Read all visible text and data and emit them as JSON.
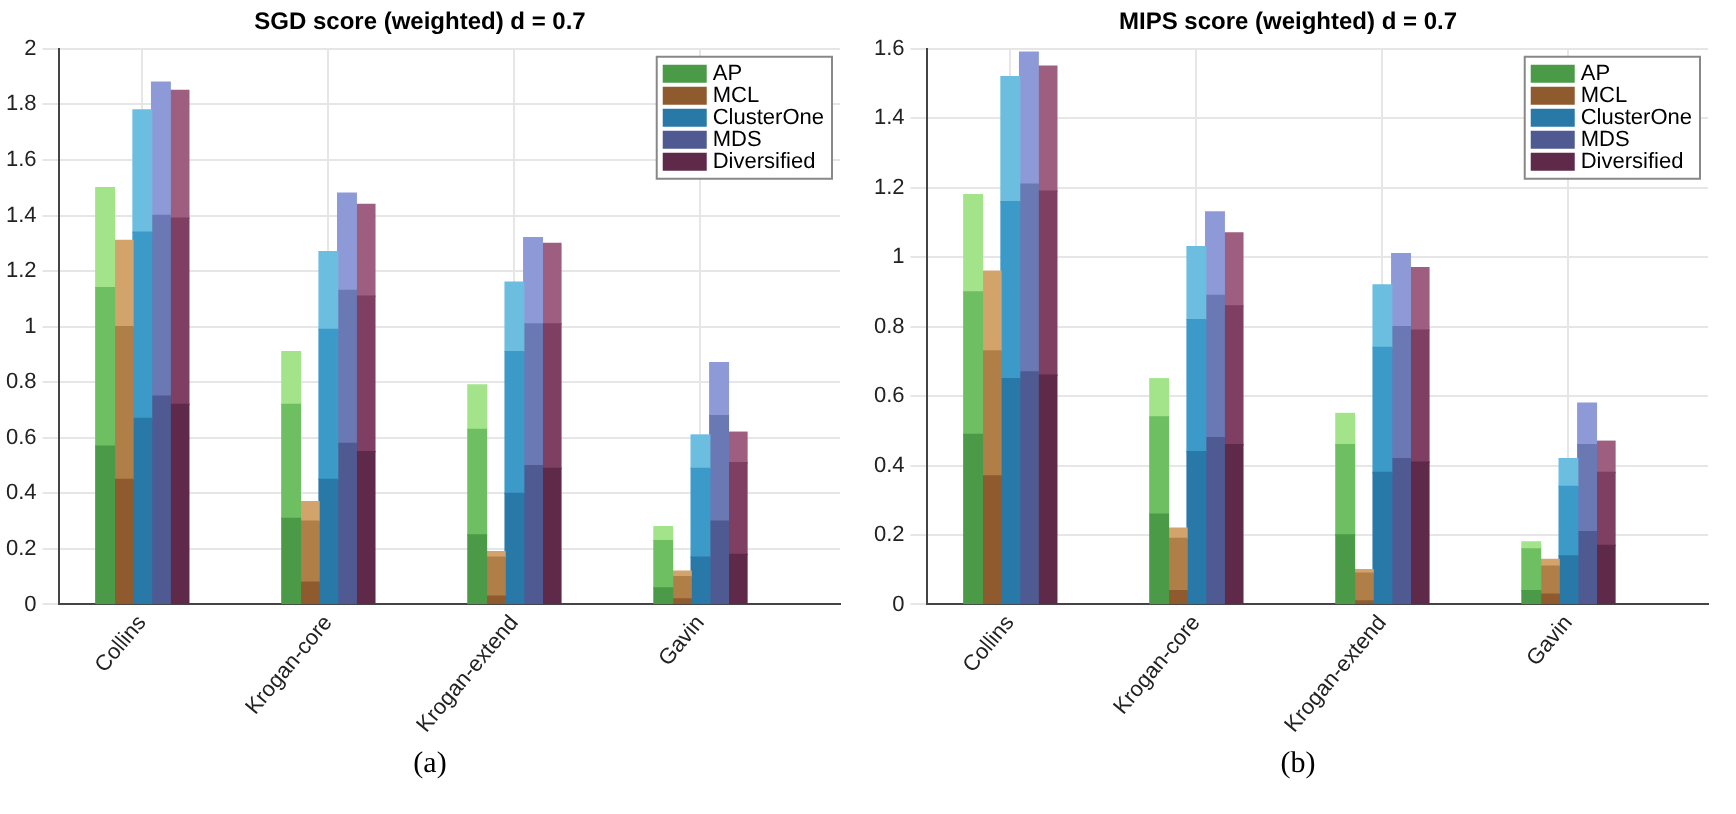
{
  "chart_data": [
    {
      "type": "bar",
      "title": "SGD score (weighted) d = 0.7",
      "categories": [
        null,
        null,
        null,
        null,
        "Collins",
        null,
        null,
        null,
        null,
        null,
        null,
        null,
        null,
        null,
        "Krogan-core",
        null,
        null,
        null,
        null,
        null,
        null,
        null,
        null,
        null,
        "Krogan-extend",
        null,
        null,
        null,
        null,
        null,
        null,
        null,
        null,
        null,
        "Gavin",
        null,
        null,
        null,
        null,
        null,
        null,
        null
      ],
      "stacked": true,
      "legend": "top right",
      "grid": true,
      "ylim": [
        0,
        2
      ],
      "yticks": [
        0,
        0.2,
        0.4,
        0.6,
        0.8,
        1,
        1.2,
        1.4,
        1.6,
        1.8,
        2
      ],
      "annotations": [
        "(a)"
      ],
      "series": [
        {
          "name": "AP",
          "color": "#4a9a48",
          "values": [
            null,
            null,
            0.57,
            null,
            null,
            null,
            null,
            null,
            null,
            null,
            null,
            null,
            0.31,
            null,
            null,
            null,
            null,
            null,
            null,
            null,
            null,
            null,
            0.25,
            null,
            null,
            null,
            null,
            null,
            null,
            null,
            null,
            null,
            0.06,
            null,
            null,
            null,
            null,
            null,
            null,
            null,
            null,
            null
          ]
        },
        {
          "color": "#6dbf62",
          "values": [
            null,
            null,
            0.57,
            null,
            null,
            null,
            null,
            null,
            null,
            null,
            null,
            null,
            0.41,
            null,
            null,
            null,
            null,
            null,
            null,
            null,
            null,
            null,
            0.38,
            null,
            null,
            null,
            null,
            null,
            null,
            null,
            null,
            null,
            0.17,
            null,
            null,
            null,
            null,
            null,
            null,
            null,
            null,
            null
          ]
        },
        {
          "color": "#a3e38a",
          "values": [
            null,
            null,
            0.36,
            null,
            null,
            null,
            null,
            null,
            null,
            null,
            null,
            null,
            0.19,
            null,
            null,
            null,
            null,
            null,
            null,
            null,
            null,
            null,
            0.16,
            null,
            null,
            null,
            null,
            null,
            null,
            null,
            null,
            null,
            0.05,
            null,
            null,
            null,
            null,
            null,
            null,
            null,
            null,
            null
          ]
        },
        {
          "name": "MCL",
          "color": "#8e5a2e",
          "values": [
            null,
            null,
            null,
            0.45,
            null,
            null,
            null,
            null,
            null,
            null,
            null,
            null,
            null,
            0.08,
            null,
            null,
            null,
            null,
            null,
            null,
            null,
            null,
            null,
            0.03,
            null,
            null,
            null,
            null,
            null,
            null,
            null,
            null,
            null,
            0.02,
            null,
            null,
            null,
            null,
            null,
            null,
            null,
            null
          ]
        },
        {
          "color": "#b07f48",
          "values": [
            null,
            null,
            null,
            0.55,
            null,
            null,
            null,
            null,
            null,
            null,
            null,
            null,
            null,
            0.22,
            null,
            null,
            null,
            null,
            null,
            null,
            null,
            null,
            null,
            0.14,
            null,
            null,
            null,
            null,
            null,
            null,
            null,
            null,
            null,
            0.08,
            null,
            null,
            null,
            null,
            null,
            null,
            null,
            null
          ]
        },
        {
          "color": "#d2a46c",
          "values": [
            null,
            null,
            null,
            0.31,
            null,
            null,
            null,
            null,
            null,
            null,
            null,
            null,
            null,
            0.07,
            null,
            null,
            null,
            null,
            null,
            null,
            null,
            null,
            null,
            0.02,
            null,
            null,
            null,
            null,
            null,
            null,
            null,
            null,
            null,
            0.02,
            null,
            null,
            null,
            null,
            null,
            null,
            null,
            null
          ]
        },
        {
          "name": "ClusterOne",
          "color": "#2878a8",
          "values": [
            null,
            null,
            null,
            null,
            0.67,
            null,
            null,
            null,
            null,
            null,
            null,
            null,
            null,
            null,
            0.45,
            null,
            null,
            null,
            null,
            null,
            null,
            null,
            null,
            null,
            0.4,
            null,
            null,
            null,
            null,
            null,
            null,
            null,
            null,
            null,
            0.17,
            null,
            null,
            null,
            null,
            null,
            null,
            null
          ]
        },
        {
          "color": "#3b9ac8",
          "values": [
            null,
            null,
            null,
            null,
            0.67,
            null,
            null,
            null,
            null,
            null,
            null,
            null,
            null,
            null,
            0.54,
            null,
            null,
            null,
            null,
            null,
            null,
            null,
            null,
            null,
            0.51,
            null,
            null,
            null,
            null,
            null,
            null,
            null,
            null,
            null,
            0.32,
            null,
            null,
            null,
            null,
            null,
            null,
            null
          ]
        },
        {
          "color": "#6bbee0",
          "values": [
            null,
            null,
            null,
            null,
            0.44,
            null,
            null,
            null,
            null,
            null,
            null,
            null,
            null,
            null,
            0.28,
            null,
            null,
            null,
            null,
            null,
            null,
            null,
            null,
            null,
            0.25,
            null,
            null,
            null,
            null,
            null,
            null,
            null,
            null,
            null,
            0.12,
            null,
            null,
            null,
            null,
            null,
            null,
            null
          ]
        },
        {
          "name": "MDS",
          "color": "#4f5a92",
          "values": [
            null,
            null,
            null,
            null,
            null,
            0.75,
            null,
            null,
            null,
            null,
            null,
            null,
            null,
            null,
            null,
            0.58,
            null,
            null,
            null,
            null,
            null,
            null,
            null,
            null,
            null,
            0.5,
            null,
            null,
            null,
            null,
            null,
            null,
            null,
            null,
            null,
            0.3,
            null,
            null,
            null,
            null,
            null,
            null
          ]
        },
        {
          "color": "#6a78b4",
          "values": [
            null,
            null,
            null,
            null,
            null,
            0.65,
            null,
            null,
            null,
            null,
            null,
            null,
            null,
            null,
            null,
            0.55,
            null,
            null,
            null,
            null,
            null,
            null,
            null,
            null,
            null,
            0.51,
            null,
            null,
            null,
            null,
            null,
            null,
            null,
            null,
            null,
            0.38,
            null,
            null,
            null,
            null,
            null,
            null
          ]
        },
        {
          "color": "#8e9ad8",
          "values": [
            null,
            null,
            null,
            null,
            null,
            0.48,
            null,
            null,
            null,
            null,
            null,
            null,
            null,
            null,
            null,
            0.35,
            null,
            null,
            null,
            null,
            null,
            null,
            null,
            null,
            null,
            0.31,
            null,
            null,
            null,
            null,
            null,
            null,
            null,
            null,
            null,
            0.19,
            null,
            null,
            null,
            null,
            null,
            null
          ]
        },
        {
          "name": "Diversified",
          "color": "#5f2a4a",
          "values": [
            null,
            null,
            null,
            null,
            null,
            null,
            0.72,
            null,
            null,
            null,
            null,
            null,
            null,
            null,
            null,
            null,
            0.55,
            null,
            null,
            null,
            null,
            null,
            null,
            null,
            null,
            null,
            0.49,
            null,
            null,
            null,
            null,
            null,
            null,
            null,
            null,
            null,
            0.18,
            null,
            null,
            null,
            null,
            null
          ]
        },
        {
          "color": "#7e3f62",
          "values": [
            null,
            null,
            null,
            null,
            null,
            null,
            0.67,
            null,
            null,
            null,
            null,
            null,
            null,
            null,
            null,
            null,
            0.56,
            null,
            null,
            null,
            null,
            null,
            null,
            null,
            null,
            null,
            0.52,
            null,
            null,
            null,
            null,
            null,
            null,
            null,
            null,
            null,
            0.33,
            null,
            null,
            null,
            null,
            null
          ]
        },
        {
          "color": "#9e5e80",
          "values": [
            null,
            null,
            null,
            null,
            null,
            null,
            0.46,
            null,
            null,
            null,
            null,
            null,
            null,
            null,
            null,
            null,
            0.33,
            null,
            null,
            null,
            null,
            null,
            null,
            null,
            null,
            null,
            0.29,
            null,
            null,
            null,
            null,
            null,
            null,
            null,
            null,
            null,
            0.11,
            null,
            null,
            null,
            null,
            null
          ]
        }
      ]
    },
    {
      "type": "bar",
      "title": "MIPS score (weighted) d = 0.7",
      "categories": [
        null,
        null,
        null,
        null,
        "Collins",
        null,
        null,
        null,
        null,
        null,
        null,
        null,
        null,
        null,
        "Krogan-core",
        null,
        null,
        null,
        null,
        null,
        null,
        null,
        null,
        null,
        "Krogan-extend",
        null,
        null,
        null,
        null,
        null,
        null,
        null,
        null,
        null,
        "Gavin",
        null,
        null,
        null,
        null,
        null,
        null,
        null
      ],
      "stacked": true,
      "legend": "top right",
      "grid": true,
      "ylim": [
        0,
        1.6
      ],
      "yticks": [
        0,
        0.2,
        0.4,
        0.6,
        0.8,
        1,
        1.2,
        1.4,
        1.6
      ],
      "annotations": [
        "(b)"
      ],
      "series": [
        {
          "name": "AP",
          "color": "#4a9a48",
          "values": [
            null,
            null,
            0.49,
            null,
            null,
            null,
            null,
            null,
            null,
            null,
            null,
            null,
            0.26,
            null,
            null,
            null,
            null,
            null,
            null,
            null,
            null,
            null,
            0.2,
            null,
            null,
            null,
            null,
            null,
            null,
            null,
            null,
            null,
            0.04,
            null,
            null,
            null,
            null,
            null,
            null,
            null,
            null,
            null
          ]
        },
        {
          "color": "#6dbf62",
          "values": [
            null,
            null,
            0.41,
            null,
            null,
            null,
            null,
            null,
            null,
            null,
            null,
            null,
            0.28,
            null,
            null,
            null,
            null,
            null,
            null,
            null,
            null,
            null,
            0.26,
            null,
            null,
            null,
            null,
            null,
            null,
            null,
            null,
            null,
            0.12,
            null,
            null,
            null,
            null,
            null,
            null,
            null,
            null,
            null
          ]
        },
        {
          "color": "#a3e38a",
          "values": [
            null,
            null,
            0.28,
            null,
            null,
            null,
            null,
            null,
            null,
            null,
            null,
            null,
            0.11,
            null,
            null,
            null,
            null,
            null,
            null,
            null,
            null,
            null,
            0.09,
            null,
            null,
            null,
            null,
            null,
            null,
            null,
            null,
            null,
            0.02,
            null,
            null,
            null,
            null,
            null,
            null,
            null,
            null,
            null
          ]
        },
        {
          "name": "MCL",
          "color": "#8e5a2e",
          "values": [
            null,
            null,
            null,
            0.37,
            null,
            null,
            null,
            null,
            null,
            null,
            null,
            null,
            null,
            0.04,
            null,
            null,
            null,
            null,
            null,
            null,
            null,
            null,
            null,
            0.01,
            null,
            null,
            null,
            null,
            null,
            null,
            null,
            null,
            null,
            0.03,
            null,
            null,
            null,
            null,
            null,
            null,
            null,
            null
          ]
        },
        {
          "color": "#b07f48",
          "values": [
            null,
            null,
            null,
            0.36,
            null,
            null,
            null,
            null,
            null,
            null,
            null,
            null,
            null,
            0.15,
            null,
            null,
            null,
            null,
            null,
            null,
            null,
            null,
            null,
            0.08,
            null,
            null,
            null,
            null,
            null,
            null,
            null,
            null,
            null,
            0.08,
            null,
            null,
            null,
            null,
            null,
            null,
            null,
            null
          ]
        },
        {
          "color": "#d2a46c",
          "values": [
            null,
            null,
            null,
            0.23,
            null,
            null,
            null,
            null,
            null,
            null,
            null,
            null,
            null,
            0.03,
            null,
            null,
            null,
            null,
            null,
            null,
            null,
            null,
            null,
            0.01,
            null,
            null,
            null,
            null,
            null,
            null,
            null,
            null,
            null,
            0.02,
            null,
            null,
            null,
            null,
            null,
            null,
            null,
            null
          ]
        },
        {
          "name": "ClusterOne",
          "color": "#2878a8",
          "values": [
            null,
            null,
            null,
            null,
            0.65,
            null,
            null,
            null,
            null,
            null,
            null,
            null,
            null,
            null,
            0.44,
            null,
            null,
            null,
            null,
            null,
            null,
            null,
            null,
            null,
            0.38,
            null,
            null,
            null,
            null,
            null,
            null,
            null,
            null,
            null,
            0.14,
            null,
            null,
            null,
            null,
            null,
            null,
            null
          ]
        },
        {
          "color": "#3b9ac8",
          "values": [
            null,
            null,
            null,
            null,
            0.51,
            null,
            null,
            null,
            null,
            null,
            null,
            null,
            null,
            null,
            0.38,
            null,
            null,
            null,
            null,
            null,
            null,
            null,
            null,
            null,
            0.36,
            null,
            null,
            null,
            null,
            null,
            null,
            null,
            null,
            null,
            0.2,
            null,
            null,
            null,
            null,
            null,
            null,
            null
          ]
        },
        {
          "color": "#6bbee0",
          "values": [
            null,
            null,
            null,
            null,
            0.36,
            null,
            null,
            null,
            null,
            null,
            null,
            null,
            null,
            null,
            0.21,
            null,
            null,
            null,
            null,
            null,
            null,
            null,
            null,
            null,
            0.18,
            null,
            null,
            null,
            null,
            null,
            null,
            null,
            null,
            null,
            0.08,
            null,
            null,
            null,
            null,
            null,
            null,
            null
          ]
        },
        {
          "name": "MDS",
          "color": "#4f5a92",
          "values": [
            null,
            null,
            null,
            null,
            null,
            0.67,
            null,
            null,
            null,
            null,
            null,
            null,
            null,
            null,
            null,
            0.48,
            null,
            null,
            null,
            null,
            null,
            null,
            null,
            null,
            null,
            0.42,
            null,
            null,
            null,
            null,
            null,
            null,
            null,
            null,
            null,
            0.21,
            null,
            null,
            null,
            null,
            null,
            null
          ]
        },
        {
          "color": "#6a78b4",
          "values": [
            null,
            null,
            null,
            null,
            null,
            0.54,
            null,
            null,
            null,
            null,
            null,
            null,
            null,
            null,
            null,
            0.41,
            null,
            null,
            null,
            null,
            null,
            null,
            null,
            null,
            null,
            0.38,
            null,
            null,
            null,
            null,
            null,
            null,
            null,
            null,
            null,
            0.25,
            null,
            null,
            null,
            null,
            null,
            null
          ]
        },
        {
          "color": "#8e9ad8",
          "values": [
            null,
            null,
            null,
            null,
            null,
            0.38,
            null,
            null,
            null,
            null,
            null,
            null,
            null,
            null,
            null,
            0.24,
            null,
            null,
            null,
            null,
            null,
            null,
            null,
            null,
            null,
            0.21,
            null,
            null,
            null,
            null,
            null,
            null,
            null,
            null,
            null,
            0.12,
            null,
            null,
            null,
            null,
            null,
            null
          ]
        },
        {
          "name": "Diversified",
          "color": "#5f2a4a",
          "values": [
            null,
            null,
            null,
            null,
            null,
            null,
            0.66,
            null,
            null,
            null,
            null,
            null,
            null,
            null,
            null,
            null,
            0.46,
            null,
            null,
            null,
            null,
            null,
            null,
            null,
            null,
            null,
            0.41,
            null,
            null,
            null,
            null,
            null,
            null,
            null,
            null,
            null,
            0.17,
            null,
            null,
            null,
            null,
            null
          ]
        },
        {
          "color": "#7e3f62",
          "values": [
            null,
            null,
            null,
            null,
            null,
            null,
            0.53,
            null,
            null,
            null,
            null,
            null,
            null,
            null,
            null,
            null,
            0.4,
            null,
            null,
            null,
            null,
            null,
            null,
            null,
            null,
            null,
            0.38,
            null,
            null,
            null,
            null,
            null,
            null,
            null,
            null,
            null,
            0.21,
            null,
            null,
            null,
            null,
            null
          ]
        },
        {
          "color": "#9e5e80",
          "values": [
            null,
            null,
            null,
            null,
            null,
            null,
            0.36,
            null,
            null,
            null,
            null,
            null,
            null,
            null,
            null,
            null,
            0.21,
            null,
            null,
            null,
            null,
            null,
            null,
            null,
            null,
            null,
            0.18,
            null,
            null,
            null,
            null,
            null,
            null,
            null,
            null,
            null,
            0.09,
            null,
            null,
            null,
            null,
            null
          ]
        }
      ]
    }
  ]
}
